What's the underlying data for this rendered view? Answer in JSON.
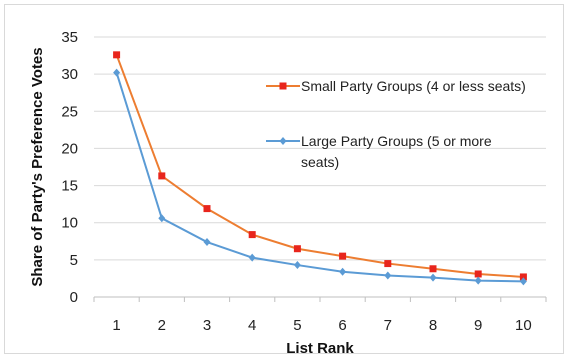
{
  "chart_data": {
    "type": "line",
    "title": "",
    "xlabel": "List Rank",
    "ylabel": "Share of Party's Preference Votes",
    "x": [
      1,
      2,
      3,
      4,
      5,
      6,
      7,
      8,
      9,
      10
    ],
    "ylim": [
      0,
      35
    ],
    "yticks": [
      0,
      5,
      10,
      15,
      20,
      25,
      30,
      35
    ],
    "grid": "horizontal",
    "legend_position": "right",
    "series": [
      {
        "name": "Small Party Groups (4 or less seats)",
        "name_lines": [
          "Small Party Groups (4 or less seats)"
        ],
        "color": "#ed7d31",
        "marker": "square",
        "values": [
          32.6,
          16.3,
          11.9,
          8.4,
          6.5,
          5.5,
          4.5,
          3.8,
          3.1,
          2.7
        ]
      },
      {
        "name": "Large Party Groups (5 or more seats)",
        "name_lines": [
          "Large Party Groups (5 or more",
          "seats)"
        ],
        "color": "#5b9bd5",
        "marker": "diamond",
        "values": [
          30.2,
          10.6,
          7.4,
          5.3,
          4.3,
          3.4,
          2.9,
          2.6,
          2.2,
          2.1
        ]
      }
    ]
  }
}
